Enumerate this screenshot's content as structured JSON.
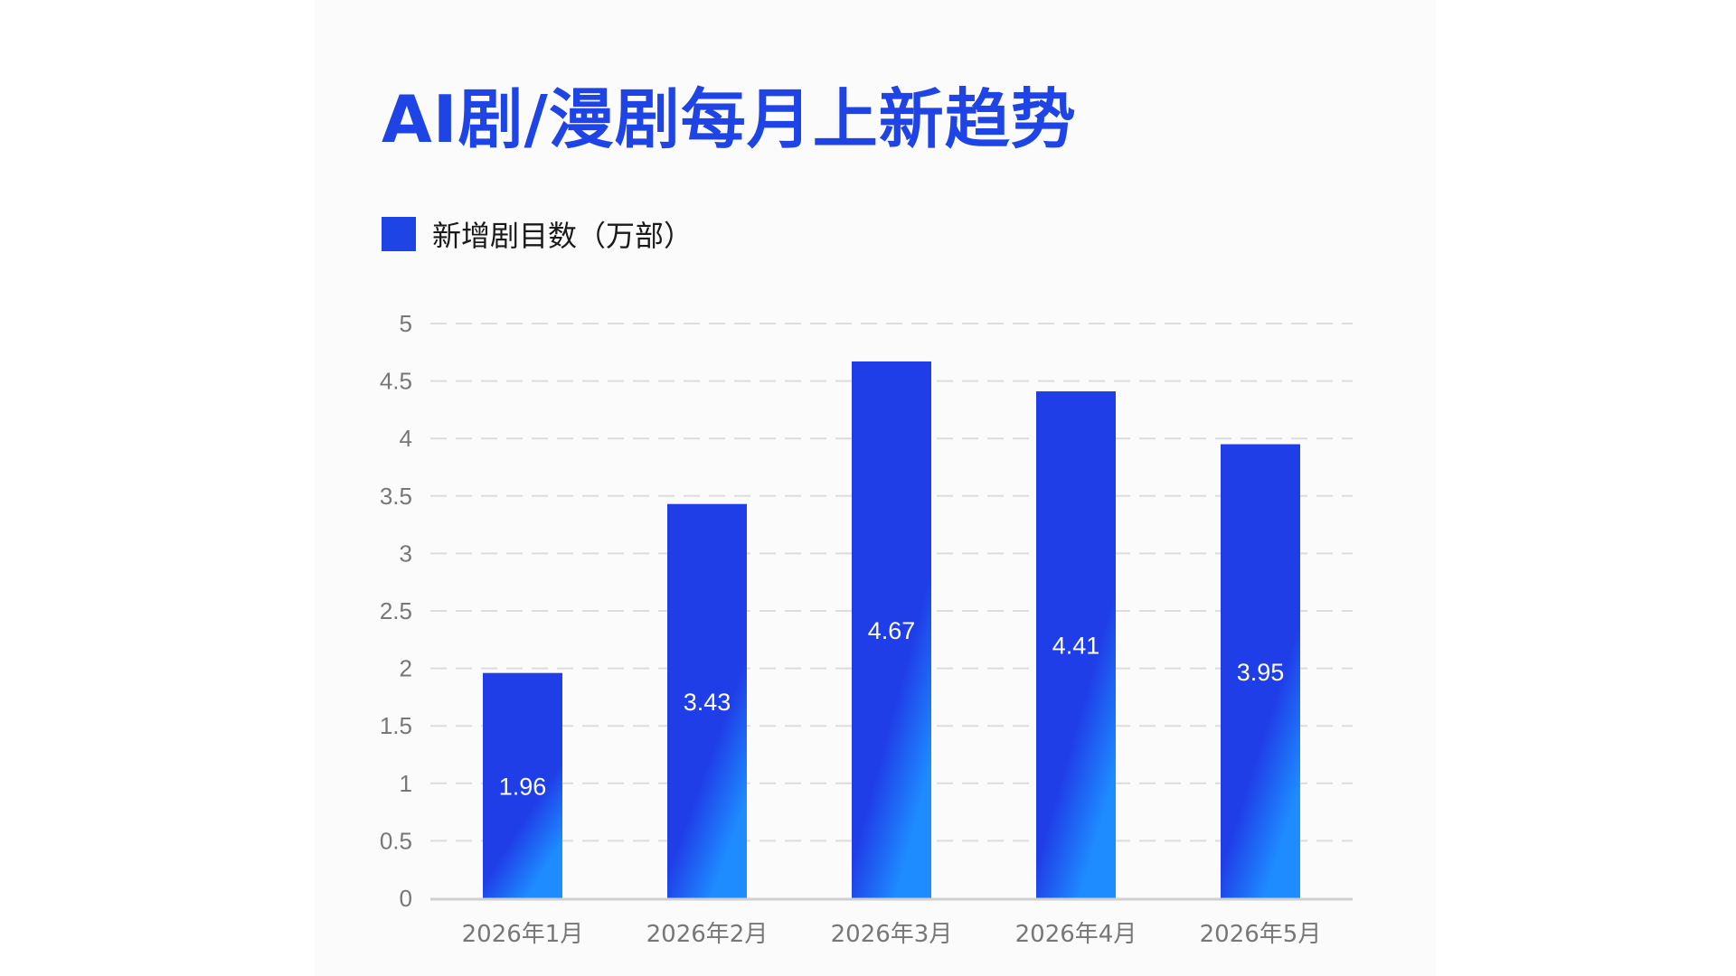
{
  "colors": {
    "accent": "#1f44e6",
    "bar_top": "#1f3ee8",
    "bar_bottom": "#1e8cff",
    "grid": "#dddddd",
    "axis_text": "#777777"
  },
  "chart_data": {
    "type": "bar",
    "title": "AI剧/漫剧每月上新趋势",
    "categories": [
      "2026年1月",
      "2026年2月",
      "2026年3月",
      "2026年4月",
      "2026年5月"
    ],
    "series": [
      {
        "name": "新增剧目数（万部）",
        "values": [
          1.96,
          3.43,
          4.67,
          4.41,
          3.95
        ]
      }
    ],
    "ylim": [
      0,
      5
    ],
    "yticks": [
      "0",
      "0.5",
      "1",
      "1.5",
      "2",
      "2.5",
      "3",
      "3.5",
      "4",
      "4.5",
      "5"
    ],
    "grid": true,
    "legend_position": "top-left",
    "data_labels": true
  }
}
